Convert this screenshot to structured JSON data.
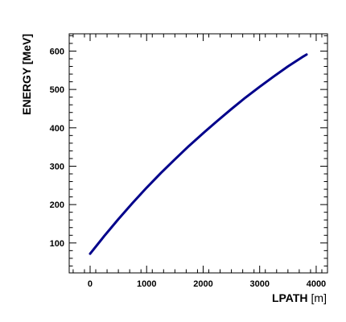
{
  "chart_data": {
    "type": "line",
    "title": "",
    "xlabel_bold": "LPATH",
    "xlabel_unit": "[m]",
    "ylabel": "ENERGY [MeV]",
    "xlim": [
      -370,
      4200
    ],
    "ylim": [
      22,
      645
    ],
    "xticks": [
      0,
      1000,
      2000,
      3000,
      4000
    ],
    "yticks": [
      100,
      200,
      300,
      400,
      500,
      600
    ],
    "xtick_labels": [
      "0",
      "1000",
      "2000",
      "3000",
      "4000"
    ],
    "ytick_labels": [
      "100",
      "200",
      "300",
      "400",
      "500",
      "600"
    ],
    "grid": false,
    "line_color": "#00008b",
    "series": [
      {
        "x": [
          0,
          250,
          500,
          750,
          1000,
          1250,
          1500,
          1750,
          2000,
          2250,
          2500,
          2750,
          3000,
          3250,
          3500,
          3750,
          3830
        ],
        "y": [
          72,
          118,
          162,
          204,
          244,
          282,
          318,
          353,
          386,
          418,
          449,
          479,
          507,
          534,
          560,
          584,
          591
        ]
      }
    ]
  }
}
